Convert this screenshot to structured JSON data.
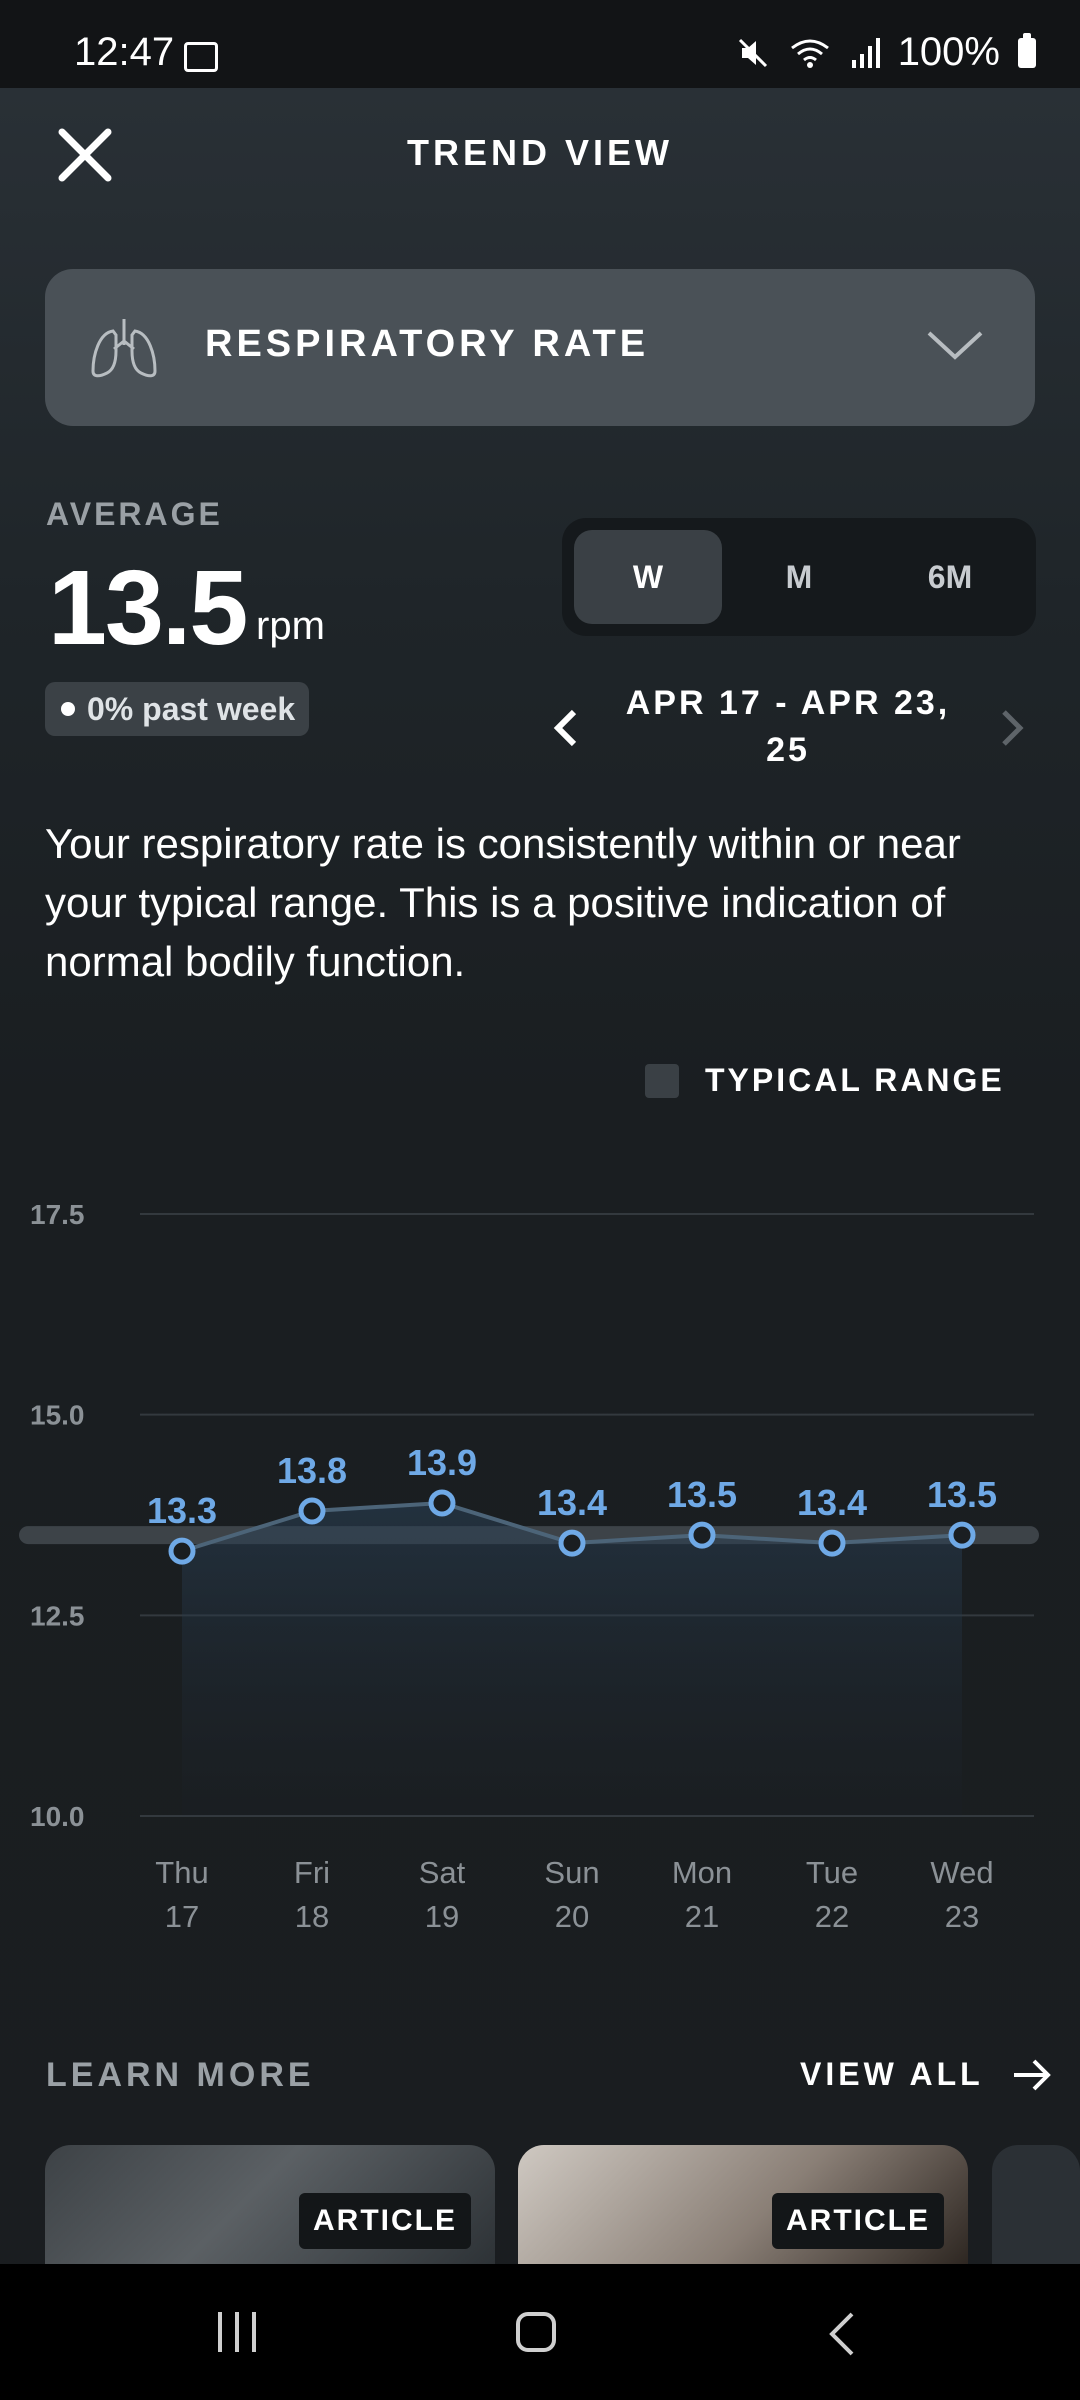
{
  "status_bar": {
    "time": "12:47",
    "battery": "100%"
  },
  "header": {
    "title": "TREND VIEW"
  },
  "metric_selector": {
    "label": "RESPIRATORY RATE",
    "icon": "lungs-icon"
  },
  "summary": {
    "average_label": "AVERAGE",
    "average_value": "13.5",
    "average_unit": "rpm",
    "change_text": "0% past week"
  },
  "period_tabs": [
    {
      "label": "W",
      "active": true
    },
    {
      "label": "M",
      "active": false
    },
    {
      "label": "6M",
      "active": false
    }
  ],
  "date_range": {
    "line1": "APR 17 - APR 23,",
    "line2": "25"
  },
  "description": "Your respiratory rate is consistently within or near your typical range. This is a positive indication of normal bodily function.",
  "legend": {
    "label": "TYPICAL RANGE"
  },
  "chart_data": {
    "type": "line",
    "x": [
      "Thu 17",
      "Fri 18",
      "Sat 19",
      "Sun 20",
      "Mon 21",
      "Tue 22",
      "Wed 23"
    ],
    "x_days": [
      "Thu",
      "Fri",
      "Sat",
      "Sun",
      "Mon",
      "Tue",
      "Wed"
    ],
    "x_dates": [
      "17",
      "18",
      "19",
      "20",
      "21",
      "22",
      "23"
    ],
    "series": [
      {
        "values": [
          13.3,
          13.8,
          13.9,
          13.4,
          13.5,
          13.4,
          13.5
        ]
      }
    ],
    "data_labels": [
      "13.3",
      "13.8",
      "13.9",
      "13.4",
      "13.5",
      "13.4",
      "13.5"
    ],
    "typical_range_band": 13.5,
    "y_ticks": [
      "17.5",
      "15.0",
      "12.5",
      "10.0"
    ],
    "ylim": [
      10.0,
      17.5
    ],
    "grid": true,
    "colors": {
      "line": "#6fa9e6",
      "band": "#3d4348"
    }
  },
  "learn_more": {
    "title": "LEARN MORE",
    "view_all": "VIEW ALL",
    "cards": [
      {
        "badge": "ARTICLE"
      },
      {
        "badge": "ARTICLE"
      }
    ]
  }
}
